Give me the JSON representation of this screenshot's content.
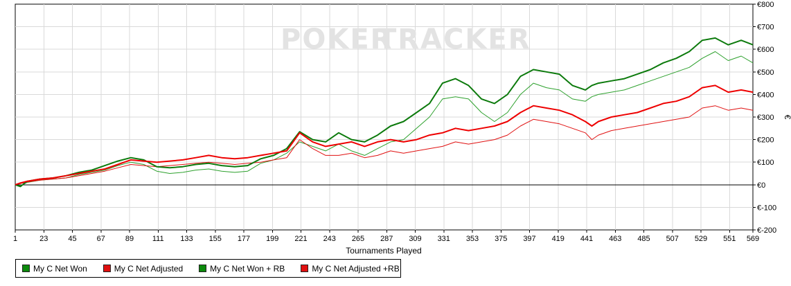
{
  "watermark": {
    "left": "POKER",
    "right": "TRACKER"
  },
  "chart_data": {
    "type": "line",
    "xlabel": "Tournaments Played",
    "ylabel": "€",
    "xlim": [
      1,
      569
    ],
    "ylim": [
      -200,
      800
    ],
    "x_ticks": [
      1,
      23,
      45,
      67,
      89,
      111,
      133,
      155,
      177,
      199,
      221,
      243,
      265,
      287,
      309,
      331,
      353,
      375,
      397,
      419,
      441,
      463,
      485,
      507,
      529,
      551,
      569
    ],
    "y_ticks": [
      800,
      700,
      600,
      500,
      400,
      300,
      200,
      100,
      0,
      -100,
      -200
    ],
    "y_tick_labels": [
      "€800",
      "€700",
      "€600",
      "€500",
      "€400",
      "€300",
      "€200",
      "€100",
      "€0",
      "€-100",
      "€-200"
    ],
    "grid": true,
    "legend_position": "bottom-left",
    "x": [
      1,
      5,
      10,
      20,
      30,
      40,
      50,
      60,
      70,
      80,
      90,
      100,
      110,
      120,
      130,
      140,
      150,
      160,
      170,
      180,
      190,
      200,
      210,
      220,
      230,
      240,
      250,
      260,
      270,
      280,
      290,
      300,
      310,
      320,
      330,
      340,
      350,
      360,
      370,
      380,
      390,
      400,
      410,
      420,
      430,
      440,
      445,
      450,
      460,
      470,
      480,
      490,
      500,
      510,
      520,
      530,
      540,
      550,
      560,
      569
    ],
    "series": [
      {
        "name": "My C Net Won",
        "color": "#2ca02c",
        "width": 1,
        "values": [
          0,
          -5,
          10,
          20,
          25,
          30,
          45,
          55,
          65,
          85,
          100,
          90,
          60,
          50,
          55,
          65,
          70,
          60,
          55,
          60,
          95,
          110,
          140,
          190,
          170,
          150,
          180,
          150,
          130,
          160,
          190,
          200,
          250,
          300,
          380,
          390,
          380,
          320,
          280,
          320,
          400,
          450,
          430,
          420,
          380,
          370,
          390,
          400,
          410,
          420,
          440,
          460,
          480,
          500,
          520,
          560,
          590,
          550,
          570,
          540
        ]
      },
      {
        "name": "My C Net Adjusted",
        "color": "#e01010",
        "width": 1,
        "values": [
          0,
          5,
          12,
          20,
          25,
          30,
          40,
          50,
          60,
          75,
          90,
          85,
          80,
          85,
          90,
          95,
          100,
          95,
          90,
          95,
          100,
          110,
          120,
          200,
          160,
          130,
          130,
          140,
          120,
          130,
          150,
          140,
          150,
          160,
          170,
          190,
          180,
          190,
          200,
          220,
          260,
          290,
          280,
          270,
          250,
          230,
          200,
          220,
          240,
          250,
          260,
          270,
          280,
          290,
          300,
          340,
          350,
          330,
          340,
          330
        ]
      },
      {
        "name": "My C Net Won + RB",
        "color": "#0c7a0c",
        "width": 2,
        "values": [
          0,
          -8,
          15,
          25,
          30,
          40,
          55,
          65,
          85,
          105,
          120,
          110,
          80,
          75,
          80,
          90,
          95,
          85,
          80,
          85,
          115,
          130,
          160,
          235,
          200,
          190,
          230,
          200,
          190,
          220,
          260,
          280,
          320,
          360,
          450,
          470,
          440,
          380,
          360,
          400,
          480,
          510,
          500,
          490,
          440,
          420,
          440,
          450,
          460,
          470,
          490,
          510,
          540,
          560,
          590,
          640,
          650,
          620,
          640,
          620
        ]
      },
      {
        "name": "My C Net Adjusted +RB",
        "color": "#ee0000",
        "width": 2,
        "values": [
          0,
          8,
          15,
          25,
          30,
          40,
          50,
          60,
          70,
          90,
          110,
          105,
          100,
          105,
          110,
          120,
          130,
          120,
          115,
          120,
          130,
          140,
          150,
          230,
          190,
          170,
          180,
          190,
          170,
          190,
          200,
          190,
          200,
          220,
          230,
          250,
          240,
          250,
          260,
          280,
          320,
          350,
          340,
          330,
          310,
          280,
          260,
          280,
          300,
          310,
          320,
          340,
          360,
          370,
          390,
          430,
          440,
          410,
          420,
          410
        ]
      }
    ]
  }
}
